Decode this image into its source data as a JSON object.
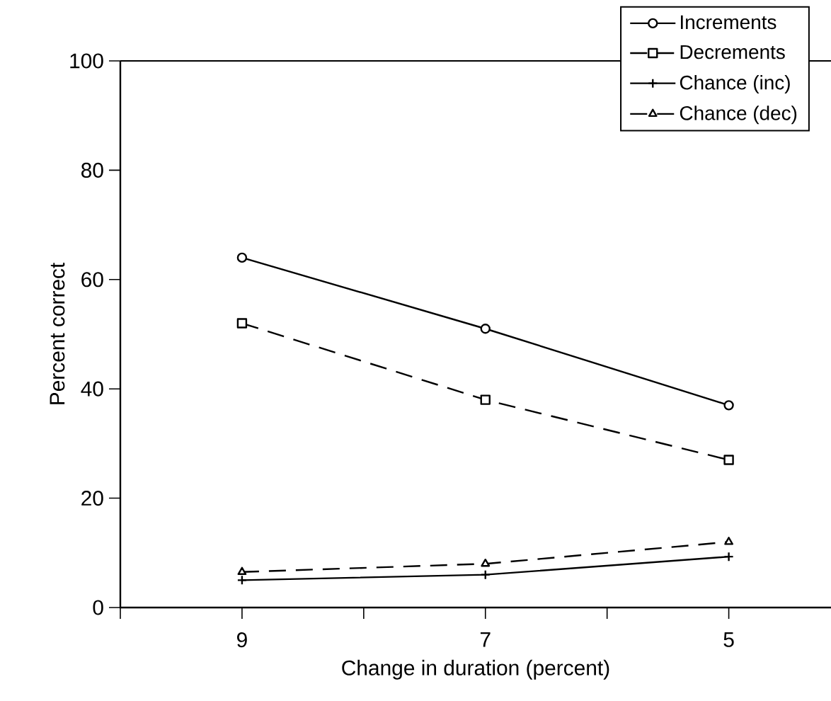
{
  "chart_data": {
    "type": "line",
    "xlabel": "Change in duration (percent)",
    "ylabel": "Percent correct",
    "x": [
      9,
      7,
      5
    ],
    "xlim": [
      10,
      4.16
    ],
    "xticks": [
      {
        "value": 10,
        "label": null
      },
      9,
      {
        "value": 8,
        "label": null
      },
      7,
      {
        "value": 6,
        "label": null
      },
      5
    ],
    "ylim": [
      0,
      100
    ],
    "yticks": [
      0,
      20,
      40,
      60,
      80,
      100
    ],
    "grid": false,
    "legend": "top right",
    "series": [
      {
        "name": "Increments",
        "color": "#000000",
        "line_style": "solid",
        "marker": "circle",
        "values": [
          64,
          51,
          37
        ]
      },
      {
        "name": "Decrements",
        "color": "#000000",
        "line_style": "dashed",
        "marker": "square",
        "values": [
          52,
          38,
          27
        ]
      },
      {
        "name": "Chance (inc)",
        "color": "#000000",
        "line_style": "solid",
        "marker": "cross",
        "values": [
          5,
          6,
          9.3
        ]
      },
      {
        "name": "Chance (dec)",
        "color": "#000000",
        "line_style": "dashed",
        "marker": "triangle",
        "values": [
          6.5,
          8,
          12
        ]
      }
    ]
  }
}
